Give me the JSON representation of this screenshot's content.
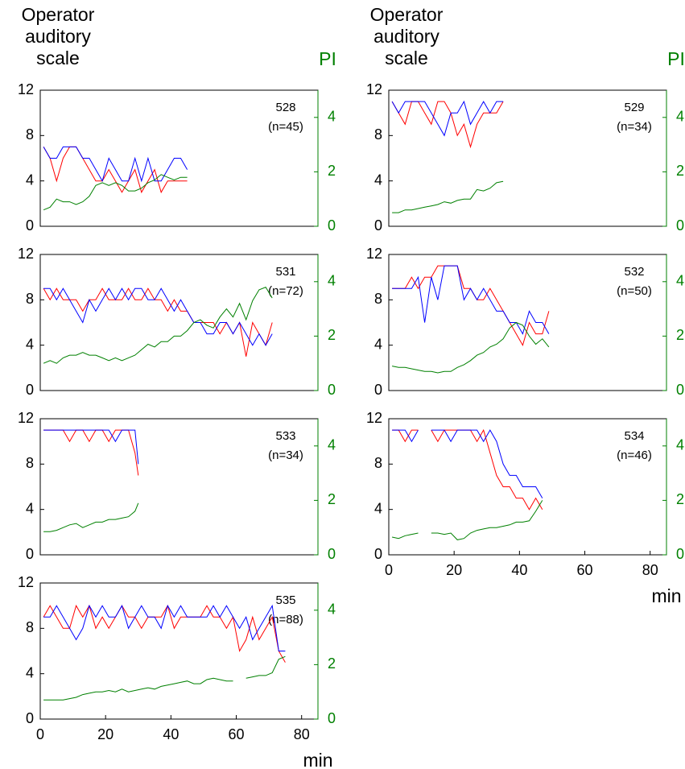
{
  "chart_data": [
    {
      "type": "line",
      "ylabel": [
        "Operator",
        "auditory",
        "scale"
      ],
      "y2label": "PI",
      "y2color": "#008000",
      "label": "528",
      "n_label": "(n=45)",
      "xlim": [
        0,
        85
      ],
      "ylim": [
        0,
        12
      ],
      "yticks": [
        0,
        4,
        8,
        12
      ],
      "y2lim": [
        0,
        5
      ],
      "y2ticks": [
        0,
        2,
        4
      ],
      "x": [
        1,
        3,
        5,
        7,
        9,
        11,
        13,
        15,
        17,
        19,
        21,
        23,
        25,
        27,
        29,
        31,
        33,
        35,
        37,
        39,
        41,
        43,
        45
      ],
      "series": [
        {
          "color": "#ff0000",
          "values": [
            7,
            6,
            4,
            6,
            7,
            7,
            6,
            5,
            4,
            4,
            5,
            4,
            3,
            4,
            5,
            3,
            4,
            5,
            3,
            4,
            4,
            4,
            4
          ]
        },
        {
          "color": "#0000ff",
          "values": [
            7,
            6,
            6,
            7,
            7,
            7,
            6,
            6,
            5,
            4,
            6,
            5,
            4,
            4,
            6,
            4,
            6,
            4,
            4,
            5,
            6,
            6,
            5
          ]
        },
        {
          "color": "#008000",
          "axis": "y2",
          "values": [
            0.6,
            0.7,
            1.0,
            0.9,
            0.9,
            0.8,
            0.9,
            1.1,
            1.5,
            1.6,
            1.5,
            1.6,
            1.5,
            1.3,
            1.3,
            1.4,
            1.6,
            1.7,
            1.9,
            1.8,
            1.7,
            1.8,
            1.8
          ]
        }
      ]
    },
    {
      "type": "line",
      "ylabel": [
        "Operator",
        "auditory",
        "scale"
      ],
      "y2label": "PI",
      "y2color": "#008000",
      "label": "529",
      "n_label": "(n=34)",
      "xlim": [
        0,
        85
      ],
      "ylim": [
        0,
        12
      ],
      "yticks": [
        0,
        4,
        8,
        12
      ],
      "y2lim": [
        0,
        5
      ],
      "y2ticks": [
        0,
        2,
        4
      ],
      "x": [
        1,
        3,
        5,
        7,
        9,
        11,
        13,
        15,
        17,
        19,
        21,
        23,
        25,
        27,
        29,
        31,
        33,
        35
      ],
      "series": [
        {
          "color": "#ff0000",
          "values": [
            11,
            10,
            9,
            11,
            11,
            10,
            9,
            11,
            11,
            10,
            8,
            9,
            7,
            9,
            10,
            10,
            10,
            11
          ]
        },
        {
          "color": "#0000ff",
          "values": [
            11,
            10,
            11,
            11,
            11,
            11,
            10,
            9,
            8,
            10,
            10,
            11,
            9,
            10,
            11,
            10,
            11,
            11
          ]
        },
        {
          "color": "#008000",
          "axis": "y2",
          "values": [
            0.5,
            0.5,
            0.6,
            0.6,
            0.65,
            0.7,
            0.75,
            0.8,
            0.9,
            0.85,
            0.95,
            1.0,
            1.0,
            1.35,
            1.3,
            1.4,
            1.6,
            1.65
          ]
        }
      ]
    },
    {
      "type": "line",
      "label": "531",
      "n_label": "(n=72)",
      "y2color": "#008000",
      "xlim": [
        0,
        85
      ],
      "ylim": [
        0,
        12
      ],
      "yticks": [
        0,
        4,
        8,
        12
      ],
      "y2lim": [
        0,
        5
      ],
      "y2ticks": [
        0,
        2,
        4
      ],
      "x": [
        1,
        3,
        5,
        7,
        9,
        11,
        13,
        15,
        17,
        19,
        21,
        23,
        25,
        27,
        29,
        31,
        33,
        35,
        37,
        39,
        41,
        43,
        45,
        47,
        49,
        51,
        53,
        55,
        57,
        59,
        61,
        63,
        65,
        67,
        69,
        71
      ],
      "series": [
        {
          "color": "#ff0000",
          "values": [
            9,
            8,
            9,
            8,
            8,
            8,
            7,
            8,
            8,
            9,
            8,
            8,
            8,
            9,
            8,
            8,
            9,
            8,
            8,
            7,
            8,
            7,
            7,
            6,
            6,
            6,
            6,
            5,
            6,
            5,
            6,
            3,
            6,
            5,
            4,
            6
          ]
        },
        {
          "color": "#0000ff",
          "values": [
            9,
            9,
            8,
            9,
            8,
            7,
            6,
            8,
            7,
            8,
            9,
            8,
            9,
            8,
            9,
            9,
            8,
            8,
            9,
            8,
            7,
            8,
            7,
            6,
            6,
            5,
            5,
            6,
            6,
            5,
            6,
            5,
            4,
            5,
            4,
            5
          ]
        },
        {
          "color": "#008000",
          "axis": "y2",
          "values": [
            1.0,
            1.1,
            1.0,
            1.2,
            1.3,
            1.3,
            1.4,
            1.3,
            1.3,
            1.2,
            1.1,
            1.2,
            1.1,
            1.2,
            1.3,
            1.5,
            1.7,
            1.6,
            1.8,
            1.8,
            2.0,
            2.0,
            2.2,
            2.5,
            2.6,
            2.4,
            2.3,
            2.7,
            3.0,
            2.7,
            3.2,
            2.6,
            3.3,
            3.7,
            3.8,
            3.4
          ]
        }
      ]
    },
    {
      "type": "line",
      "label": "532",
      "n_label": "(n=50)",
      "y2color": "#008000",
      "xlim": [
        0,
        85
      ],
      "ylim": [
        0,
        12
      ],
      "yticks": [
        0,
        4,
        8,
        12
      ],
      "y2lim": [
        0,
        5
      ],
      "y2ticks": [
        0,
        2,
        4
      ],
      "x": [
        1,
        3,
        5,
        7,
        9,
        11,
        13,
        15,
        17,
        19,
        21,
        23,
        25,
        27,
        29,
        31,
        33,
        35,
        37,
        39,
        41,
        43,
        45,
        47,
        49
      ],
      "series": [
        {
          "color": "#ff0000",
          "values": [
            9,
            9,
            9,
            10,
            9,
            10,
            10,
            11,
            11,
            11,
            11,
            9,
            9,
            8,
            8,
            9,
            8,
            7,
            6,
            5,
            4,
            6,
            5,
            5,
            7
          ]
        },
        {
          "color": "#0000ff",
          "values": [
            9,
            9,
            9,
            9,
            10,
            6,
            10,
            8,
            11,
            11,
            11,
            8,
            9,
            8,
            9,
            8,
            7,
            7,
            6,
            6,
            5,
            7,
            6,
            6,
            5
          ]
        },
        {
          "color": "#008000",
          "axis": "y2",
          "values": [
            0.9,
            0.85,
            0.85,
            0.8,
            0.75,
            0.7,
            0.7,
            0.65,
            0.7,
            0.7,
            0.85,
            0.95,
            1.1,
            1.3,
            1.4,
            1.6,
            1.7,
            1.9,
            2.3,
            2.5,
            2.4,
            2.0,
            1.7,
            1.9,
            1.6
          ]
        }
      ]
    },
    {
      "type": "line",
      "label": "533",
      "n_label": "(n=34)",
      "y2color": "#008000",
      "xlim": [
        0,
        85
      ],
      "ylim": [
        0,
        12
      ],
      "yticks": [
        0,
        4,
        8,
        12
      ],
      "y2lim": [
        0,
        5
      ],
      "y2ticks": [
        0,
        2,
        4
      ],
      "x": [
        1,
        3,
        5,
        7,
        9,
        11,
        13,
        15,
        17,
        19,
        21,
        23,
        25,
        27,
        29,
        30
      ],
      "series": [
        {
          "color": "#ff0000",
          "values": [
            11,
            11,
            11,
            11,
            10,
            11,
            11,
            10,
            11,
            11,
            10,
            11,
            11,
            11,
            9,
            7
          ]
        },
        {
          "color": "#0000ff",
          "values": [
            11,
            11,
            11,
            11,
            11,
            11,
            11,
            11,
            11,
            11,
            11,
            10,
            11,
            11,
            11,
            8
          ]
        },
        {
          "color": "#008000",
          "axis": "y2",
          "values": [
            0.85,
            0.85,
            0.9,
            1.0,
            1.1,
            1.15,
            1.0,
            1.1,
            1.2,
            1.2,
            1.3,
            1.3,
            1.35,
            1.4,
            1.6,
            1.9
          ]
        }
      ]
    },
    {
      "type": "line",
      "label": "534",
      "n_label": "(n=46)",
      "y2color": "#008000",
      "xlabel": "min",
      "xlim": [
        0,
        85
      ],
      "xticks": [
        0,
        20,
        40,
        60,
        80
      ],
      "ylim": [
        0,
        12
      ],
      "yticks": [
        0,
        4,
        8,
        12
      ],
      "y2lim": [
        0,
        5
      ],
      "y2ticks": [
        0,
        2,
        4
      ],
      "x": [
        1,
        3,
        5,
        7,
        9,
        11,
        13,
        15,
        17,
        19,
        21,
        23,
        25,
        27,
        29,
        31,
        33,
        35,
        37,
        39,
        41,
        43,
        45,
        47
      ],
      "series": [
        {
          "color": "#ff0000",
          "values": [
            11,
            11,
            10,
            11,
            11,
            null,
            11,
            10,
            11,
            11,
            11,
            11,
            11,
            10,
            11,
            9,
            7,
            6,
            6,
            5,
            5,
            4,
            5,
            4
          ]
        },
        {
          "color": "#0000ff",
          "values": [
            11,
            11,
            11,
            10,
            11,
            null,
            11,
            11,
            11,
            10,
            11,
            11,
            11,
            11,
            10,
            11,
            10,
            8,
            7,
            7,
            6,
            6,
            6,
            5
          ]
        },
        {
          "color": "#008000",
          "axis": "y2",
          "values": [
            0.65,
            0.6,
            0.7,
            0.75,
            0.8,
            null,
            0.8,
            0.8,
            0.75,
            0.8,
            0.55,
            0.6,
            0.8,
            0.9,
            0.95,
            1.0,
            1.0,
            1.05,
            1.1,
            1.2,
            1.2,
            1.25,
            1.6,
            2.0
          ]
        }
      ]
    },
    {
      "type": "line",
      "label": "535",
      "n_label": "(n=88)",
      "y2color": "#008000",
      "xlabel": "min",
      "xlim": [
        0,
        85
      ],
      "xticks": [
        0,
        20,
        40,
        60,
        80
      ],
      "ylim": [
        0,
        12
      ],
      "yticks": [
        0,
        4,
        8,
        12
      ],
      "y2lim": [
        0,
        5
      ],
      "y2ticks": [
        0,
        2,
        4
      ],
      "x": [
        1,
        3,
        5,
        7,
        9,
        11,
        13,
        15,
        17,
        19,
        21,
        23,
        25,
        27,
        29,
        31,
        33,
        35,
        37,
        39,
        41,
        43,
        45,
        47,
        49,
        51,
        53,
        55,
        57,
        59,
        61,
        63,
        65,
        67,
        69,
        71,
        73,
        75
      ],
      "series": [
        {
          "color": "#ff0000",
          "values": [
            9,
            10,
            9,
            8,
            8,
            10,
            9,
            10,
            8,
            9,
            8,
            9,
            10,
            9,
            9,
            8,
            9,
            9,
            9,
            10,
            8,
            9,
            9,
            9,
            9,
            10,
            9,
            9,
            8,
            9,
            6,
            7,
            9,
            7,
            8,
            9,
            6,
            5
          ]
        },
        {
          "color": "#0000ff",
          "values": [
            9,
            9,
            10,
            9,
            8,
            7,
            8,
            10,
            9,
            10,
            9,
            9,
            10,
            8,
            9,
            10,
            9,
            9,
            8,
            10,
            9,
            10,
            9,
            9,
            9,
            9,
            10,
            9,
            10,
            9,
            8,
            9,
            7,
            8,
            9,
            10,
            6,
            6
          ]
        },
        {
          "color": "#008000",
          "axis": "y2",
          "values": [
            0.7,
            0.7,
            0.7,
            0.7,
            0.75,
            0.8,
            0.9,
            0.95,
            1.0,
            1.0,
            1.05,
            1.0,
            1.1,
            1.0,
            1.05,
            1.1,
            1.15,
            1.1,
            1.2,
            1.25,
            1.3,
            1.35,
            1.4,
            1.3,
            1.3,
            1.45,
            1.5,
            1.45,
            1.4,
            1.4,
            null,
            1.5,
            1.55,
            1.6,
            1.6,
            1.7,
            2.2,
            2.3
          ]
        }
      ]
    }
  ]
}
